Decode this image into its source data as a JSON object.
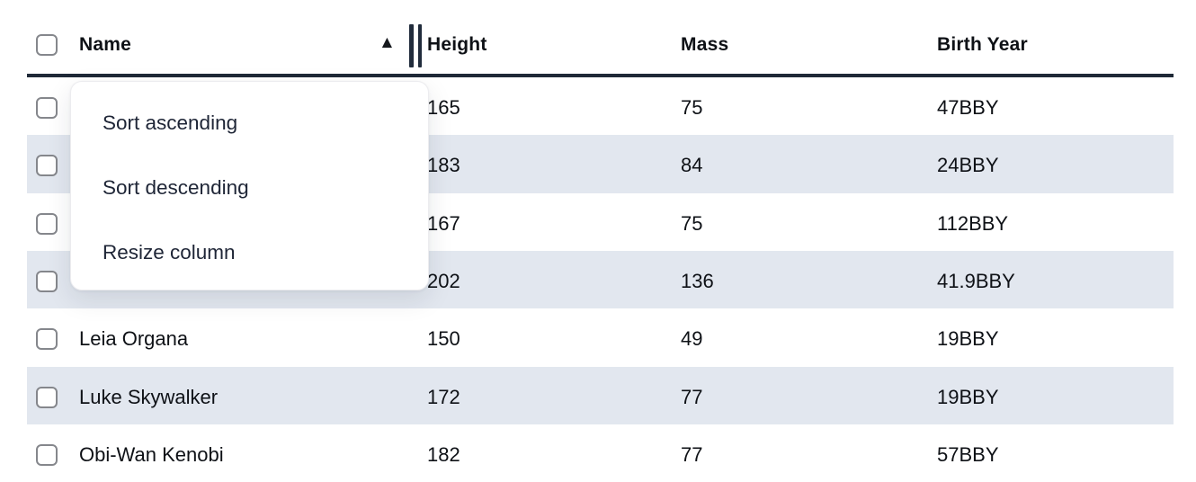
{
  "table": {
    "columns": [
      "Name",
      "Height",
      "Mass",
      "Birth Year"
    ],
    "sorted_column": "Name",
    "sort_indicator_icon": "ascending-triangle",
    "rows": [
      {
        "name": "",
        "height": "165",
        "mass": "75",
        "birth_year": "47BBY",
        "selected": false
      },
      {
        "name": "",
        "height": "183",
        "mass": "84",
        "birth_year": "24BBY",
        "selected": false
      },
      {
        "name": "",
        "height": "167",
        "mass": "75",
        "birth_year": "112BBY",
        "selected": false
      },
      {
        "name": "",
        "height": "202",
        "mass": "136",
        "birth_year": "41.9BBY",
        "selected": false
      },
      {
        "name": "Leia Organa",
        "height": "150",
        "mass": "49",
        "birth_year": "19BBY",
        "selected": false
      },
      {
        "name": "Luke Skywalker",
        "height": "172",
        "mass": "77",
        "birth_year": "19BBY",
        "selected": false
      },
      {
        "name": "Obi-Wan Kenobi",
        "height": "182",
        "mass": "77",
        "birth_year": "57BBY",
        "selected": false
      }
    ],
    "select_all_checked": false
  },
  "context_menu": {
    "items": [
      {
        "label": "Sort ascending"
      },
      {
        "label": "Sort descending"
      },
      {
        "label": "Resize column"
      }
    ]
  },
  "icons": {
    "sort_ascending": "▲",
    "resize_handle": "double-vertical-bar"
  },
  "colors": {
    "row_stripe": "#e2e7ef",
    "header_border": "#1f2937",
    "cell_text": "#0e1116",
    "menu_text": "#1e2536"
  }
}
